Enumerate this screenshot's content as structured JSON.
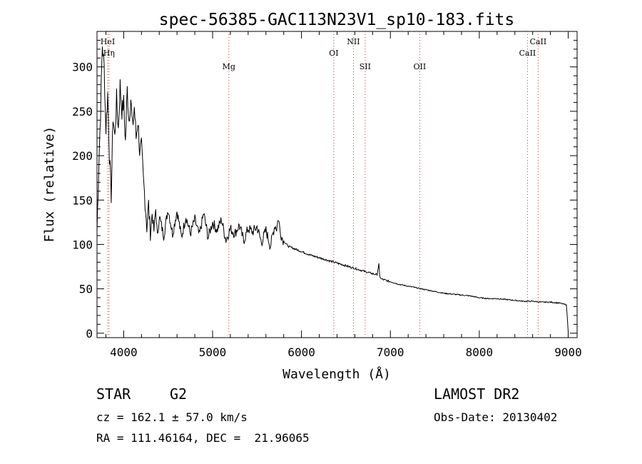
{
  "chart_data": {
    "type": "line",
    "title": "spec-56385-GAC113N23V1_sp10-183.fits",
    "xlabel": "Wavelength (Å)",
    "ylabel": "Flux (relative)",
    "xlim": [
      3700,
      9100
    ],
    "ylim": [
      -5,
      340
    ],
    "xticks": [
      4000,
      5000,
      6000,
      7000,
      8000,
      9000
    ],
    "yticks": [
      0,
      50,
      100,
      150,
      200,
      250,
      300
    ],
    "grid": false,
    "line_color": "#000000",
    "marker_color": "#c0392b",
    "series": [
      {
        "x": [
          3700,
          3720,
          3740,
          3760,
          3780,
          3800,
          3820,
          3840,
          3860,
          3880,
          3900,
          3920,
          3940,
          3960,
          3980,
          4000,
          4020,
          4040,
          4060,
          4080,
          4100,
          4120,
          4140,
          4160,
          4180,
          4200,
          4220,
          4240,
          4260,
          4280,
          4300,
          4320,
          4340,
          4360,
          4380,
          4400,
          4450,
          4500,
          4550,
          4600,
          4650,
          4700,
          4750,
          4800,
          4850,
          4900,
          4950,
          5000,
          5050,
          5100,
          5150,
          5200,
          5250,
          5300,
          5350,
          5400,
          5450,
          5500,
          5550,
          5600,
          5650,
          5700,
          5720,
          5740,
          5760,
          5780,
          5800,
          5850,
          5900,
          6000,
          6100,
          6200,
          6300,
          6400,
          6500,
          6600,
          6700,
          6800,
          6850,
          6870,
          6880,
          6900,
          7000,
          7100,
          7200,
          7300,
          7400,
          7500,
          7600,
          7700,
          7800,
          7900,
          8000,
          8100,
          8200,
          8300,
          8400,
          8500,
          8600,
          8700,
          8800,
          8900,
          8980,
          9000
        ],
        "y": [
          115,
          190,
          250,
          325,
          300,
          230,
          270,
          200,
          155,
          245,
          220,
          265,
          230,
          280,
          250,
          260,
          215,
          275,
          240,
          265,
          230,
          255,
          220,
          240,
          205,
          210,
          175,
          150,
          120,
          145,
          110,
          135,
          115,
          140,
          108,
          132,
          110,
          140,
          112,
          138,
          108,
          132,
          112,
          128,
          110,
          135,
          108,
          125,
          116,
          128,
          105,
          118,
          112,
          122,
          104,
          118,
          114,
          120,
          102,
          116,
          98,
          122,
          118,
          130,
          115,
          108,
          104,
          98,
          96,
          92,
          88,
          85,
          82,
          79,
          76,
          73,
          70,
          67,
          66,
          78,
          64,
          61,
          58,
          55,
          53,
          51,
          49,
          47,
          45,
          44,
          43,
          42,
          40,
          39,
          39,
          38,
          37,
          36,
          36,
          35,
          35,
          34,
          32,
          2
        ]
      }
    ],
    "line_markers": [
      {
        "label": "HeI",
        "x": 3820
      },
      {
        "label": "Hη",
        "x": 3835
      },
      {
        "label": "Mg",
        "x": 5183
      },
      {
        "label": "OI",
        "x": 6363
      },
      {
        "label": "NII",
        "x": 6584
      },
      {
        "label": "SII",
        "x": 6716
      },
      {
        "label": "OII",
        "x": 7330
      },
      {
        "label": "CaII",
        "x": 8542
      },
      {
        "label": "CaII",
        "x": 8662
      }
    ]
  },
  "info": {
    "object_type": "STAR",
    "subclass": "G2",
    "survey": "LAMOST DR2",
    "cz_line": "cz = 162.1 ± 57.0 km/s",
    "obs_date_line": "Obs-Date: 20130402",
    "coords_line": "RA = 111.46164, DEC =  21.96065"
  }
}
